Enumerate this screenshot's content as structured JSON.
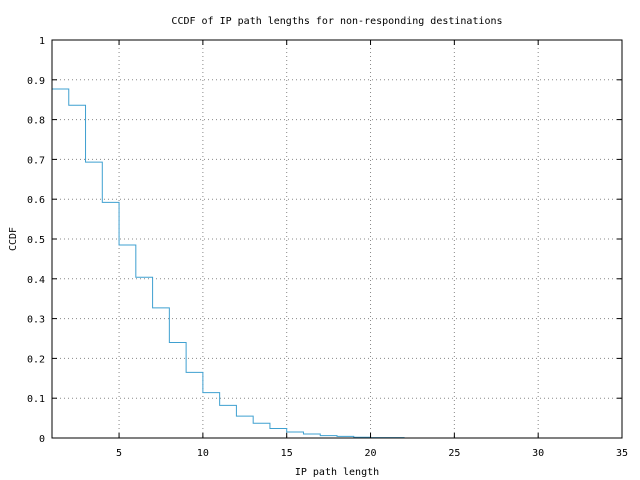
{
  "chart_data": {
    "type": "line",
    "style": "step",
    "title": "CCDF of IP path lengths for non-responding destinations",
    "xlabel": "IP path length",
    "ylabel": "CCDF",
    "xlim": [
      1,
      35
    ],
    "ylim": [
      0,
      1
    ],
    "xticks": [
      5,
      10,
      15,
      20,
      25,
      30,
      35
    ],
    "yticks": [
      0,
      0.1,
      0.2,
      0.3,
      0.4,
      0.5,
      0.6,
      0.7,
      0.8,
      0.9,
      1
    ],
    "xtick_labels": [
      "5",
      "10",
      "15",
      "20",
      "25",
      "30",
      "35"
    ],
    "ytick_labels": [
      "0",
      "0.1",
      "0.2",
      "0.3",
      "0.4",
      "0.5",
      "0.6",
      "0.7",
      "0.8",
      "0.9",
      "1"
    ],
    "grid": true,
    "line_color": "#3fa0d0",
    "series": [
      {
        "x": [
          1,
          2,
          3,
          4,
          5,
          6,
          7,
          8,
          9,
          10,
          11,
          12,
          13,
          14,
          15,
          16,
          17,
          18,
          19,
          20,
          21,
          22
        ],
        "y": [
          0.877,
          0.836,
          0.693,
          0.592,
          0.485,
          0.404,
          0.327,
          0.24,
          0.165,
          0.114,
          0.082,
          0.055,
          0.037,
          0.024,
          0.015,
          0.01,
          0.006,
          0.004,
          0.002,
          0.001,
          0.001,
          0
        ]
      }
    ]
  }
}
